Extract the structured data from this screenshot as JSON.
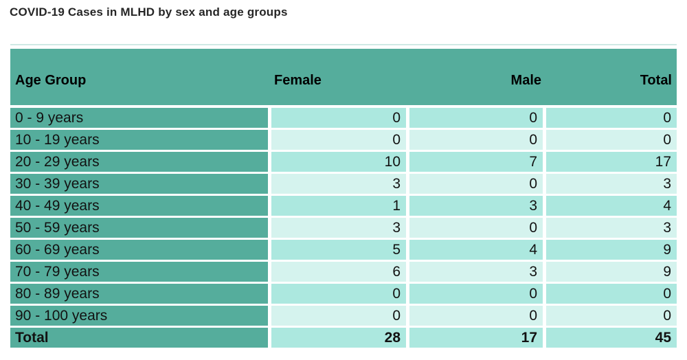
{
  "title": "COVID-19 Cases in MLHD by sex and age groups",
  "table": {
    "columns": [
      "Age Group",
      "Female",
      "Male",
      "Total"
    ],
    "rows": [
      {
        "label": "0 - 9 years",
        "values": [
          "0",
          "0",
          "0"
        ]
      },
      {
        "label": "10 - 19 years",
        "values": [
          "0",
          "0",
          "0"
        ]
      },
      {
        "label": "20 - 29 years",
        "values": [
          "10",
          "7",
          "17"
        ]
      },
      {
        "label": "30 - 39 years",
        "values": [
          "3",
          "0",
          "3"
        ]
      },
      {
        "label": "40 - 49 years",
        "values": [
          "1",
          "3",
          "4"
        ]
      },
      {
        "label": "50 - 59 years",
        "values": [
          "3",
          "0",
          "3"
        ]
      },
      {
        "label": "60 - 69 years",
        "values": [
          "5",
          "4",
          "9"
        ]
      },
      {
        "label": "70 - 79 years",
        "values": [
          "6",
          "3",
          "9"
        ]
      },
      {
        "label": "80 - 89 years",
        "values": [
          "0",
          "0",
          "0"
        ]
      },
      {
        "label": "90 - 100 years",
        "values": [
          "0",
          "0",
          "0"
        ]
      }
    ],
    "total_row": {
      "label": "Total",
      "values": [
        "28",
        "17",
        "45"
      ]
    }
  },
  "colors": {
    "header_teal": "#55ad9c",
    "row_medium": "#ace8df",
    "row_light": "#d5f3ee",
    "top_border": "#cfe9e5",
    "text": "#121212"
  },
  "chart_data": {
    "type": "table",
    "title": "COVID-19 Cases in MLHD by sex and age groups",
    "columns": [
      "Age Group",
      "Female",
      "Male",
      "Total"
    ],
    "rows": [
      [
        "0 - 9 years",
        0,
        0,
        0
      ],
      [
        "10 - 19 years",
        0,
        0,
        0
      ],
      [
        "20 - 29 years",
        10,
        7,
        17
      ],
      [
        "30 - 39 years",
        3,
        0,
        3
      ],
      [
        "40 - 49 years",
        1,
        3,
        4
      ],
      [
        "50 - 59 years",
        3,
        0,
        3
      ],
      [
        "60 - 69 years",
        5,
        4,
        9
      ],
      [
        "70 - 79 years",
        6,
        3,
        9
      ],
      [
        "80 - 89 years",
        0,
        0,
        0
      ],
      [
        "90 - 100 years",
        0,
        0,
        0
      ],
      [
        "Total",
        28,
        17,
        45
      ]
    ]
  }
}
